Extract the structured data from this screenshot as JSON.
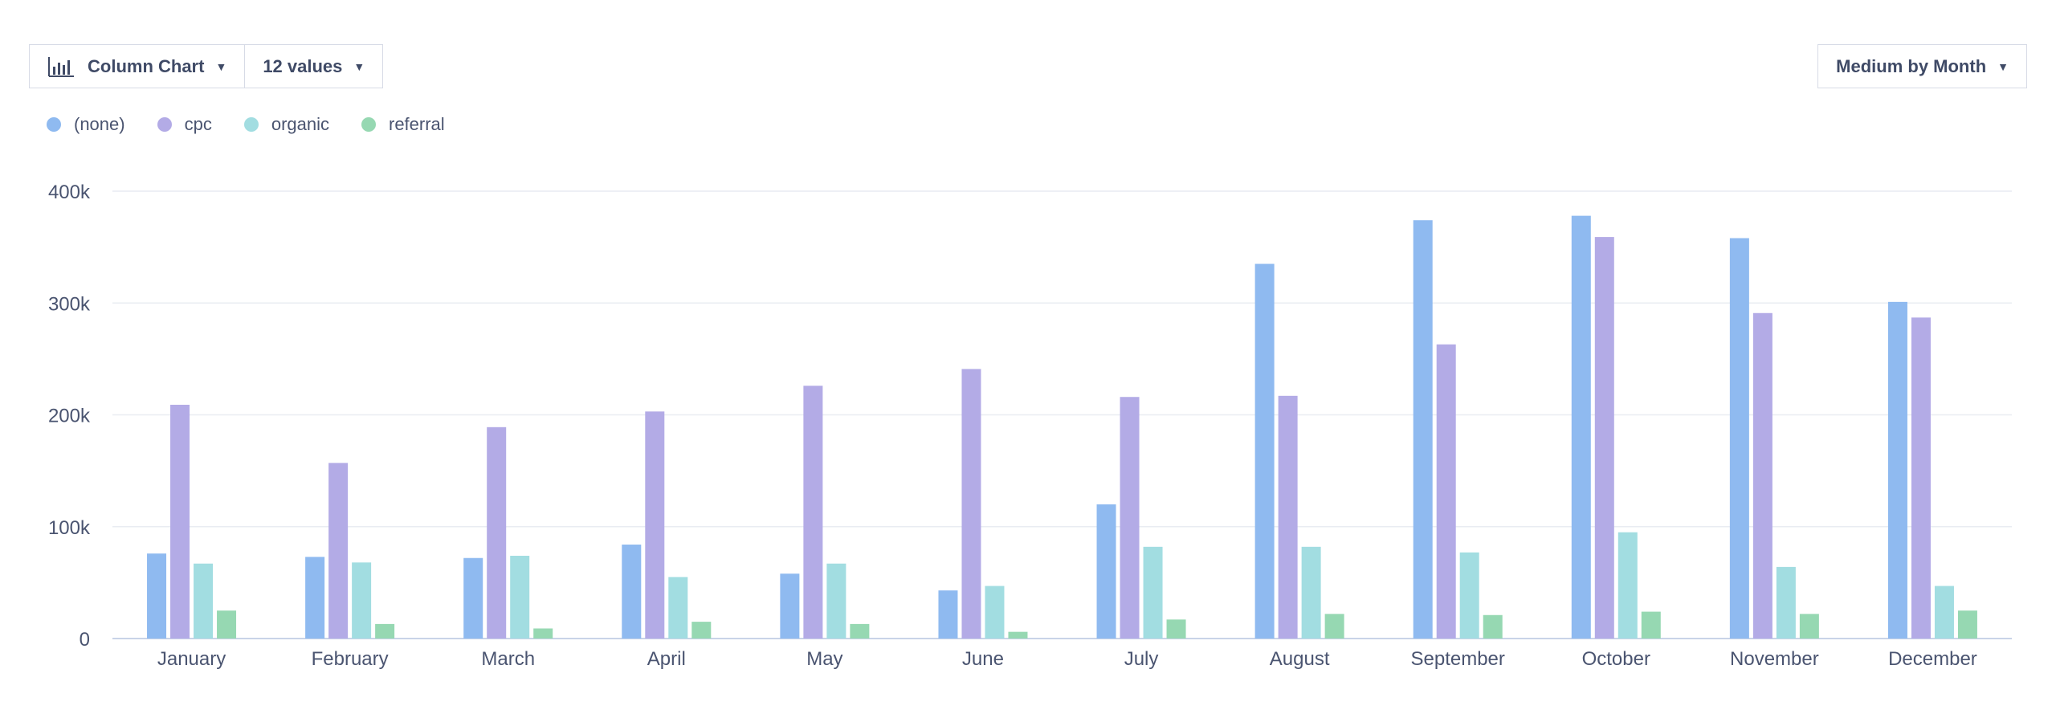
{
  "toolbar": {
    "chart_type_label": "Column Chart",
    "values_label": "12 values",
    "grouping_label": "Medium by Month"
  },
  "icons": {
    "chart_type": "bar-chart-icon",
    "dropdown": "caret-down-icon"
  },
  "chart_data": {
    "type": "bar",
    "categories": [
      "January",
      "February",
      "March",
      "April",
      "May",
      "June",
      "July",
      "August",
      "September",
      "October",
      "November",
      "December"
    ],
    "series": [
      {
        "name": "(none)",
        "color": "#8fbaf0",
        "values": [
          76000,
          73000,
          72000,
          84000,
          58000,
          43000,
          120000,
          335000,
          374000,
          378000,
          358000,
          301000
        ]
      },
      {
        "name": "cpc",
        "color": "#b3abe6",
        "values": [
          209000,
          157000,
          189000,
          203000,
          226000,
          241000,
          216000,
          217000,
          263000,
          359000,
          291000,
          287000
        ]
      },
      {
        "name": "organic",
        "color": "#a2dde1",
        "values": [
          67000,
          68000,
          74000,
          55000,
          67000,
          47000,
          82000,
          82000,
          77000,
          95000,
          64000,
          47000
        ]
      },
      {
        "name": "referral",
        "color": "#96d8b2",
        "values": [
          25000,
          13000,
          9000,
          15000,
          13000,
          6000,
          17000,
          22000,
          21000,
          24000,
          22000,
          25000
        ]
      }
    ],
    "yticks": [
      "0",
      "100k",
      "200k",
      "300k",
      "400k"
    ],
    "ytick_values": [
      0,
      100000,
      200000,
      300000,
      400000
    ],
    "ylim": [
      0,
      400000
    ],
    "grid": true,
    "legend": "top-left"
  }
}
